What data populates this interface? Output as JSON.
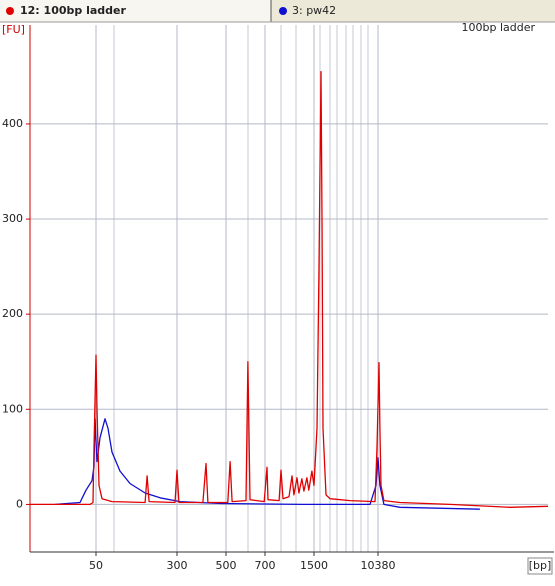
{
  "chart_data": {
    "type": "line",
    "y_label": "[FU]",
    "x_label": "[bp]",
    "annotation": "100bp ladder",
    "xscale": "log",
    "grid": true,
    "xlim": [
      11.6,
      1770000
    ],
    "xticks": [
      50,
      300,
      500,
      700,
      1500,
      10380
    ],
    "ylim": [
      -50,
      504
    ],
    "yticks": [
      0,
      100,
      200,
      300,
      400
    ],
    "series": [
      {
        "name": "12: 100bp ladder",
        "color": "#e00000",
        "x": [
          11.6,
          43.8,
          46.8,
          47.8,
          50,
          51.1,
          53.4,
          57.1,
          71.2,
          148,
          155,
          162,
          287,
          300,
          306,
          393,
          406,
          414,
          508,
          518,
          527,
          594,
          604,
          615,
          695,
          722,
          733,
          871,
          898,
          926,
          1016,
          1065,
          1098,
          1151,
          1186,
          1242,
          1282,
          1343,
          1384,
          1452,
          1500,
          1642,
          1744,
          1854,
          1910,
          1968,
          2155,
          2430,
          4450,
          9480,
          10070,
          10700,
          11000,
          11350,
          12400,
          20100,
          91200,
          560000,
          1770000
        ],
        "values": [
          0,
          0,
          2,
          60,
          157,
          100,
          20,
          6,
          3,
          2,
          30,
          3,
          2,
          36,
          2,
          2,
          43,
          2,
          2,
          45,
          3,
          4,
          150,
          5,
          3,
          39,
          5,
          4,
          36,
          6,
          8,
          30,
          10,
          28,
          12,
          27,
          14,
          28,
          15,
          35,
          20,
          80,
          250,
          455,
          300,
          80,
          10,
          6,
          4,
          3,
          60,
          149,
          80,
          20,
          4,
          2,
          0,
          -3,
          -2
        ]
      },
      {
        "name": "3: pw42",
        "color": "#1010d0",
        "x": [
          20.2,
          35.1,
          40.1,
          45.8,
          47.8,
          48.9,
          51.1,
          54.6,
          61.0,
          65.2,
          71.2,
          85.1,
          106,
          148,
          206,
          310,
          474,
          1242,
          8140,
          9770,
          10380,
          11000,
          12400,
          20100,
          226000
        ],
        "values": [
          0,
          2,
          15,
          25,
          40,
          90,
          45,
          70,
          90,
          80,
          55,
          35,
          22,
          12,
          7,
          3,
          1,
          0,
          0,
          20,
          49,
          20,
          0,
          -3,
          -5
        ]
      }
    ]
  }
}
